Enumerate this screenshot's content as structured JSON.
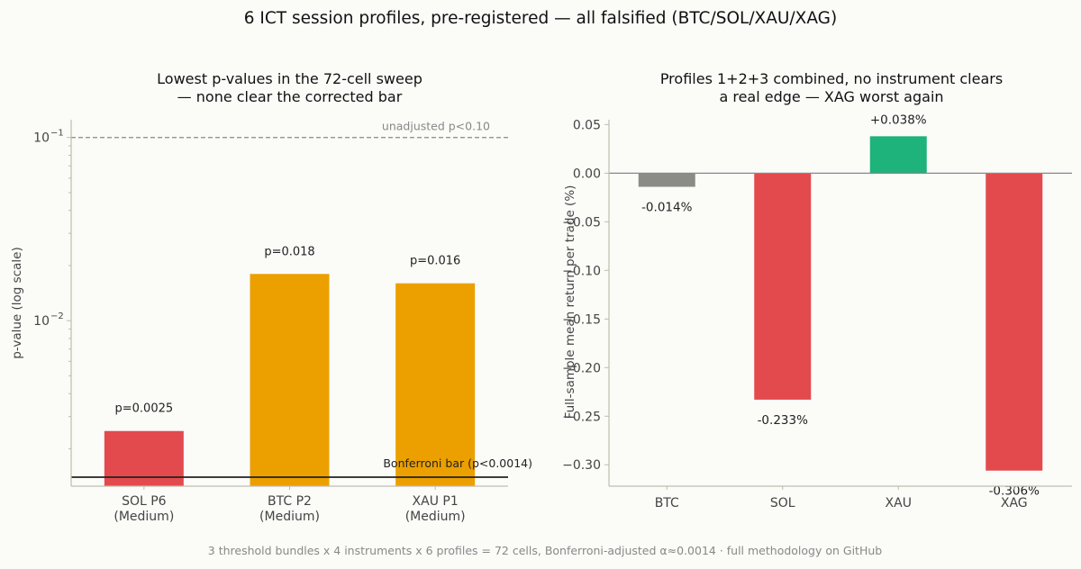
{
  "suptitle": "6 ICT session profiles, pre-registered — all falsified (BTC/SOL/XAU/XAG)",
  "footer": "3 threshold bundles x 4 instruments x 6 profiles = 72 cells, Bonferroni-adjusted α≈0.0014 · full methodology on GitHub",
  "chart_data": [
    {
      "type": "bar",
      "title": [
        "Lowest p-values in the 72-cell sweep",
        "— none clear the corrected bar"
      ],
      "ylabel": "p-value (log scale)",
      "yscale": "log",
      "ylim": [
        0.00125,
        0.125
      ],
      "ytick_labels": [
        {
          "value": 0.1,
          "base": "10",
          "exp": "−1"
        },
        {
          "value": 0.01,
          "base": "10",
          "exp": "−2"
        }
      ],
      "categories": [
        [
          "SOL P6",
          "(Medium)"
        ],
        [
          "BTC P2",
          "(Medium)"
        ],
        [
          "XAU P1",
          "(Medium)"
        ]
      ],
      "values": [
        0.0025,
        0.018,
        0.016
      ],
      "value_labels": [
        "p=0.0025",
        "p=0.018",
        "p=0.016"
      ],
      "colors": [
        "#e34a4d",
        "#eba000",
        "#eba000"
      ],
      "reference_lines": [
        {
          "value": 0.1,
          "label": "unadjusted p<0.10",
          "style": "dashed",
          "color": "#888888"
        },
        {
          "value": 0.0014,
          "label": "Bonferroni bar (p<0.0014)",
          "style": "solid",
          "color": "#222222"
        }
      ],
      "grid": false
    },
    {
      "type": "bar",
      "title": [
        "Profiles 1+2+3 combined, no instrument clears",
        "a real edge — XAG worst again"
      ],
      "ylabel": "Full-sample mean return per trade (%)",
      "ylim": [
        -0.322,
        0.055
      ],
      "yticks": [
        0.05,
        0.0,
        -0.05,
        -0.1,
        -0.15,
        -0.2,
        -0.25,
        -0.3
      ],
      "ytick_labels": [
        "0.05",
        "0.00",
        "−0.05",
        "−0.10",
        "−0.15",
        "−0.20",
        "−0.25",
        "−0.30"
      ],
      "categories": [
        "BTC",
        "SOL",
        "XAU",
        "XAG"
      ],
      "values": [
        -0.014,
        -0.233,
        0.038,
        -0.306
      ],
      "value_labels": [
        "-0.014%",
        "-0.233%",
        "+0.038%",
        "-0.306%"
      ],
      "colors": [
        "#8c8c86",
        "#e34a4d",
        "#1db37a",
        "#e34a4d"
      ],
      "zero_line_color": "#888888",
      "grid": false
    }
  ]
}
